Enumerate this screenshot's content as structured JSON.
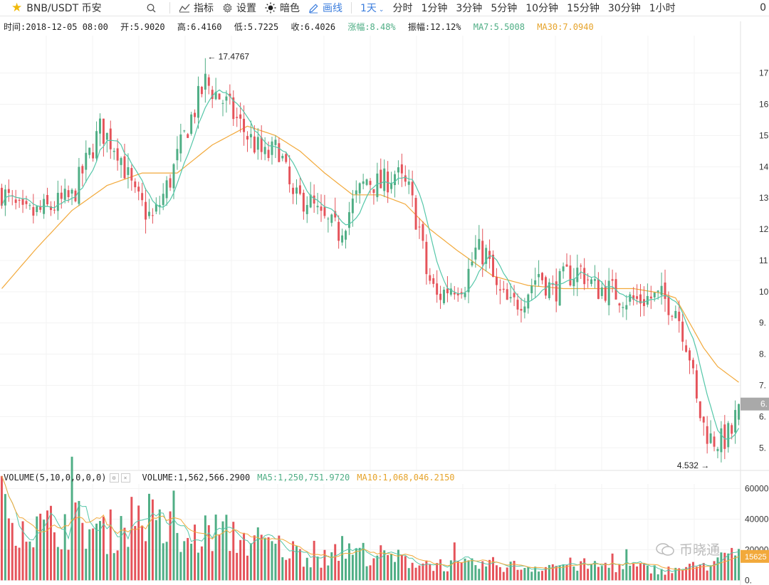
{
  "toolbar": {
    "symbol": "BNB/USDT 币安",
    "search_icon": "search-icon",
    "indicators_label": "指标",
    "settings_label": "设置",
    "dark_label": "暗色",
    "draw_label": "画线",
    "timeframes": [
      "1天",
      "分时",
      "1分钟",
      "3分钟",
      "5分钟",
      "10分钟",
      "15分钟",
      "30分钟",
      "1小时"
    ],
    "active_timeframe": "1天",
    "right_digit": "0"
  },
  "info": {
    "time": "时间:2018-12-05 08:00",
    "open": "开:5.9020",
    "high": "高:6.4160",
    "low": "低:5.7225",
    "close": "收:6.4026",
    "change": "涨幅:8.48%",
    "amplitude": "振幅:12.12%",
    "ma7": "MA7:5.5008",
    "ma30": "MA30:7.0940"
  },
  "volume_bar": {
    "label": "VOLUME(5,10,0,0,0,0)",
    "value": "VOLUME:1,562,566.2900",
    "ma5": "MA5:1,250,751.9720",
    "ma10": "MA10:1,068,046.2150"
  },
  "watermark": "币晓通",
  "colors": {
    "up": "#4fae85",
    "down": "#e5535a",
    "ma_short": "#55c7a9",
    "ma_long": "#f2a93b",
    "accent": "#3b7ddd"
  },
  "chart_data": {
    "type": "candlestick",
    "y_ticks": [
      "17",
      "16",
      "15",
      "14",
      "13",
      "12",
      "11",
      "10",
      "9.",
      "8.",
      "7.",
      "6.",
      "5."
    ],
    "y_tick_values": [
      17,
      16,
      15,
      14,
      13,
      12,
      11,
      10,
      9,
      8,
      7,
      6,
      5
    ],
    "current_price_label": "6.",
    "max_annotation": "17.4767",
    "min_annotation": "4.532",
    "ylim": [
      4.3,
      18.2
    ],
    "close_path": [
      [
        0,
        13.2
      ],
      [
        6,
        12.4
      ],
      [
        12,
        12.6
      ],
      [
        20,
        13.0
      ],
      [
        28,
        15.2
      ],
      [
        33,
        14.6
      ],
      [
        38,
        13.0
      ],
      [
        43,
        12.3
      ],
      [
        48,
        13.6
      ],
      [
        53,
        15.3
      ],
      [
        58,
        16.7
      ],
      [
        64,
        16.0
      ],
      [
        70,
        15.0
      ],
      [
        75,
        14.3
      ],
      [
        79,
        14.6
      ],
      [
        83,
        12.9
      ],
      [
        87,
        13.0
      ],
      [
        91,
        12.3
      ],
      [
        96,
        11.9
      ],
      [
        100,
        12.8
      ],
      [
        104,
        13.6
      ],
      [
        108,
        13.4
      ],
      [
        112,
        13.8
      ],
      [
        116,
        13.2
      ],
      [
        119,
        12.0
      ],
      [
        121,
        10.6
      ],
      [
        124,
        9.8
      ],
      [
        128,
        10.2
      ],
      [
        132,
        10.3
      ],
      [
        135,
        11.3
      ],
      [
        138,
        11.2
      ],
      [
        141,
        10.0
      ],
      [
        145,
        9.5
      ],
      [
        149,
        9.9
      ],
      [
        153,
        10.6
      ],
      [
        157,
        10.0
      ],
      [
        161,
        10.5
      ],
      [
        165,
        10.7
      ],
      [
        169,
        10.1
      ],
      [
        172,
        10.1
      ],
      [
        176,
        9.9
      ],
      [
        180,
        9.7
      ],
      [
        184,
        9.8
      ],
      [
        188,
        9.8
      ],
      [
        192,
        9.5
      ],
      [
        194,
        8.8
      ],
      [
        196,
        8.0
      ],
      [
        198,
        6.4
      ],
      [
        200,
        5.7
      ],
      [
        202,
        5.3
      ],
      [
        205,
        5.2
      ],
      [
        208,
        5.5
      ],
      [
        210,
        6.4
      ]
    ],
    "ma30_path": [
      [
        0,
        10.1
      ],
      [
        10,
        11.4
      ],
      [
        20,
        12.6
      ],
      [
        30,
        13.4
      ],
      [
        40,
        13.8
      ],
      [
        50,
        13.8
      ],
      [
        60,
        14.7
      ],
      [
        70,
        15.3
      ],
      [
        78,
        15.0
      ],
      [
        85,
        14.5
      ],
      [
        92,
        13.8
      ],
      [
        100,
        13.1
      ],
      [
        108,
        13.1
      ],
      [
        115,
        12.8
      ],
      [
        122,
        12.0
      ],
      [
        130,
        11.3
      ],
      [
        140,
        10.5
      ],
      [
        150,
        10.2
      ],
      [
        160,
        10.1
      ],
      [
        170,
        10.1
      ],
      [
        180,
        10.1
      ],
      [
        188,
        9.95
      ],
      [
        192,
        9.8
      ],
      [
        196,
        9.0
      ],
      [
        200,
        8.2
      ],
      [
        204,
        7.6
      ],
      [
        210,
        7.1
      ]
    ],
    "volume_ticks": [
      "60000",
      "40000",
      "20000",
      "0."
    ],
    "volume_tick_values": [
      60000,
      40000,
      20000,
      0
    ],
    "volume_current_label": "15625",
    "volume_ylim": [
      -1200,
      63000
    ],
    "volume_path": [
      [
        0,
        50000
      ],
      [
        10,
        35000
      ],
      [
        20,
        40000
      ],
      [
        30,
        32000
      ],
      [
        40,
        47000
      ],
      [
        50,
        24000
      ],
      [
        60,
        34000
      ],
      [
        70,
        28000
      ],
      [
        80,
        22000
      ],
      [
        90,
        15000
      ],
      [
        100,
        20000
      ],
      [
        110,
        16000
      ],
      [
        120,
        12000
      ],
      [
        130,
        10000
      ],
      [
        140,
        11000
      ],
      [
        150,
        9000
      ],
      [
        160,
        11000
      ],
      [
        170,
        10000
      ],
      [
        180,
        9000
      ],
      [
        190,
        7000
      ],
      [
        200,
        10000
      ],
      [
        210,
        18000
      ]
    ]
  }
}
